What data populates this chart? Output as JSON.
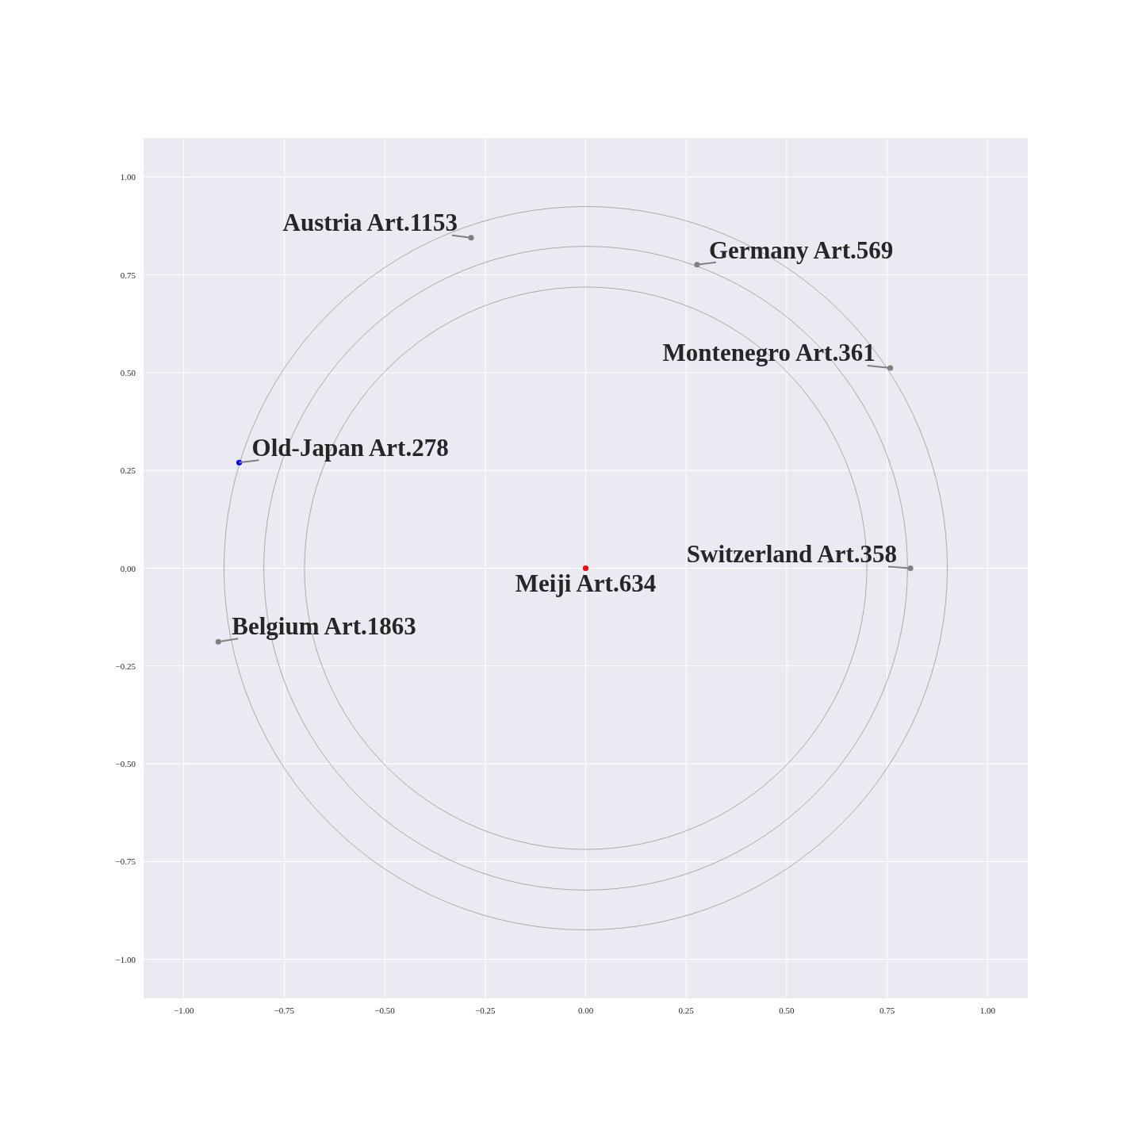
{
  "chart_data": {
    "type": "scatter",
    "xlim": [
      -1.1,
      1.1
    ],
    "ylim": [
      -1.1,
      1.1
    ],
    "xticks": [
      {
        "value": -1,
        "label": "−1.00"
      },
      {
        "value": -0.75,
        "label": "−0.75"
      },
      {
        "value": -0.5,
        "label": "−0.50"
      },
      {
        "value": -0.25,
        "label": "−0.25"
      },
      {
        "value": 0,
        "label": "0.00"
      },
      {
        "value": 0.25,
        "label": "0.25"
      },
      {
        "value": 0.5,
        "label": "0.50"
      },
      {
        "value": 0.75,
        "label": "0.75"
      },
      {
        "value": 1,
        "label": "1.00"
      }
    ],
    "yticks": [
      {
        "value": -1,
        "label": "−1.00"
      },
      {
        "value": -0.75,
        "label": "−0.75"
      },
      {
        "value": -0.5,
        "label": "−0.50"
      },
      {
        "value": -0.25,
        "label": "−0.25"
      },
      {
        "value": 0,
        "label": "0.00"
      },
      {
        "value": 0.25,
        "label": "0.25"
      },
      {
        "value": 0.5,
        "label": "0.50"
      },
      {
        "value": 0.75,
        "label": "0.75"
      },
      {
        "value": 1,
        "label": "1.00"
      }
    ],
    "grid": true,
    "legend": false,
    "marker": "circle",
    "series": [
      {
        "x": [
          -0.285,
          0.277,
          0.758,
          -0.862,
          0.808,
          0,
          -0.914
        ],
        "values": [
          0.845,
          0.776,
          0.512,
          0.27,
          0,
          0,
          -0.188
        ],
        "colors": [
          "#808080",
          "#808080",
          "#808080",
          "#0000ff",
          "#808080",
          "#ff0000",
          "#808080"
        ]
      }
    ],
    "annotations": [
      {
        "text": "Austria Art.1153",
        "x": -0.285,
        "y": 0.845
      },
      {
        "text": "Germany Art.569",
        "x": 0.277,
        "y": 0.776
      },
      {
        "text": "Montenegro Art.361",
        "x": 0.758,
        "y": 0.512
      },
      {
        "text": "Old-Japan Art.278",
        "x": -0.862,
        "y": 0.27
      },
      {
        "text": "Switzerland Art.358",
        "x": 0.808,
        "y": 0
      },
      {
        "text": "Meiji Art.634",
        "x": 0,
        "y": 0
      },
      {
        "text": "Belgium Art.1863",
        "x": -0.914,
        "y": -0.188
      }
    ]
  }
}
